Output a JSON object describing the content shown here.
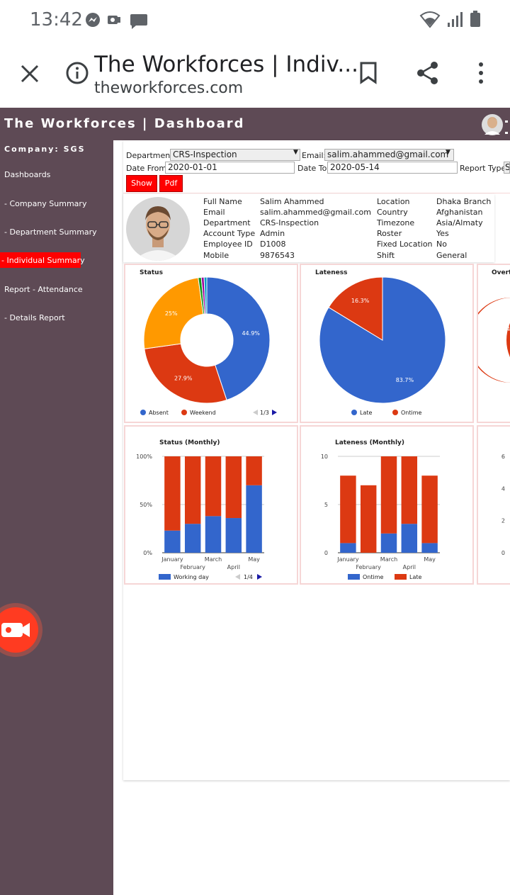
{
  "status_bar": {
    "time": "13:42"
  },
  "browser": {
    "title": "The Workforces | Indiv...",
    "url": "theworkforces.com"
  },
  "app": {
    "title": "The Workforces | Dashboard"
  },
  "sidebar": {
    "company": "Company: SGS",
    "items": [
      {
        "label": "Dashboards"
      },
      {
        "label": "- Company Summary"
      },
      {
        "label": "- Department Summary"
      },
      {
        "label": "- Individual Summary",
        "active": true
      },
      {
        "label": "Report - Attendance"
      },
      {
        "label": "- Details Report"
      }
    ]
  },
  "filters": {
    "department_label": "Department:",
    "department_value": "CRS-Inspection",
    "email_label": "Email:",
    "email_value": "salim.ahammed@gmail.com",
    "date_from_label": "Date From:",
    "date_from_value": "2020-01-01",
    "date_to_label": "Date To:",
    "date_to_value": "2020-05-14",
    "report_type_label": "Report Type:",
    "report_type_value": "S",
    "show_label": "Show",
    "pdf_label": "Pdf"
  },
  "profile": {
    "fields_left": [
      {
        "label": "Full Name",
        "value": "Salim Ahammed"
      },
      {
        "label": "Email",
        "value": "salim.ahammed@gmail.com"
      },
      {
        "label": "Department",
        "value": "CRS-Inspection"
      },
      {
        "label": "Account Type",
        "value": "Admin"
      },
      {
        "label": "Employee ID",
        "value": "D1008"
      },
      {
        "label": "Mobile",
        "value": "9876543"
      }
    ],
    "fields_right": [
      {
        "label": "Location",
        "value": "Dhaka Branch"
      },
      {
        "label": "Country",
        "value": "Afghanistan"
      },
      {
        "label": "Timezone",
        "value": "Asia/Almaty"
      },
      {
        "label": "Roster",
        "value": "Yes"
      },
      {
        "label": "Fixed Location",
        "value": "No"
      },
      {
        "label": "Shift",
        "value": "General"
      }
    ]
  },
  "panels": {
    "status_title": "Status",
    "lateness_title": "Lateness",
    "overtime_title": "Overti",
    "status_monthly_title": "Status (Monthly)",
    "lateness_monthly_title": "Lateness (Monthly)"
  },
  "chart_data": [
    {
      "type": "pie",
      "title": "Status",
      "donut": true,
      "slices": [
        {
          "name": "Absent",
          "value": 44.9,
          "label": "44.9%",
          "color": "#3366cc"
        },
        {
          "name": "Weekend",
          "value": 27.9,
          "label": "27.9%",
          "color": "#dc3912"
        },
        {
          "name": "",
          "value": 25.0,
          "label": "25%",
          "color": "#ff9900"
        },
        {
          "name": "",
          "value": 0.8,
          "label": "",
          "color": "#109618"
        },
        {
          "name": "",
          "value": 0.7,
          "label": "",
          "color": "#990099"
        },
        {
          "name": "",
          "value": 0.7,
          "label": "",
          "color": "#0099c6"
        }
      ],
      "legend": [
        "Absent",
        "Weekend"
      ],
      "legend_page": "1/3",
      "legend_position": "bottom"
    },
    {
      "type": "pie",
      "title": "Lateness",
      "slices": [
        {
          "name": "Late",
          "value": 83.7,
          "label": "83.7%",
          "color": "#3366cc"
        },
        {
          "name": "Ontime",
          "value": 16.3,
          "label": "16.3%",
          "color": "#dc3912"
        }
      ],
      "legend": [
        "Late",
        "Ontime"
      ],
      "legend_position": "bottom"
    },
    {
      "type": "bar",
      "stacked": true,
      "title": "Status (Monthly)",
      "categories": [
        "January",
        "February",
        "March",
        "April",
        "May"
      ],
      "series": [
        {
          "name": "Working day",
          "values": [
            23,
            30,
            38,
            36,
            70
          ],
          "color": "#3366cc"
        },
        {
          "name": "",
          "values": [
            77,
            70,
            62,
            64,
            30
          ],
          "color": "#dc3912"
        }
      ],
      "ylim": [
        0,
        100
      ],
      "yticks": [
        "0%",
        "50%",
        "100%"
      ],
      "legend_page": "1/4",
      "legend_position": "bottom"
    },
    {
      "type": "bar",
      "stacked": true,
      "title": "Lateness (Monthly)",
      "categories": [
        "January",
        "February",
        "March",
        "April",
        "May"
      ],
      "series": [
        {
          "name": "Ontime",
          "values": [
            1,
            0,
            2,
            3,
            1
          ],
          "color": "#3366cc"
        },
        {
          "name": "Late",
          "values": [
            7,
            7,
            8,
            7,
            7
          ],
          "color": "#dc3912"
        }
      ],
      "ylim": [
        0,
        10
      ],
      "yticks": [
        "0",
        "5",
        "10"
      ],
      "legend_position": "bottom"
    },
    {
      "type": "pie",
      "title": "Overti",
      "partial": true,
      "visible_label": "4",
      "color": "#dc3912"
    },
    {
      "type": "bar",
      "title": "",
      "partial": true,
      "yticks": [
        "0",
        "2",
        "4",
        "6"
      ]
    }
  ]
}
